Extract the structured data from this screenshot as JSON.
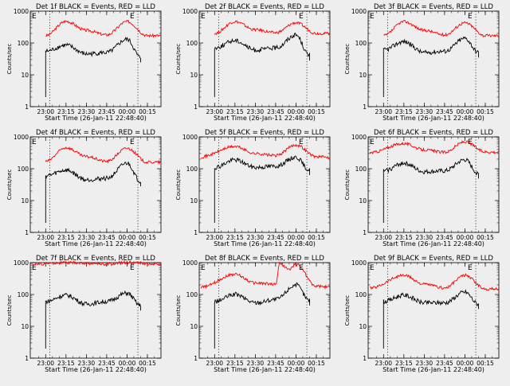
{
  "chart_data": [
    {
      "type": "line",
      "title": "Det 1f BLACK = Events, RED = LLD",
      "xlabel": "Start Time (26-Jan-11 22:48:40)",
      "ylabel": "Counts/sec",
      "yscale": "log",
      "ylim": [
        1,
        1000
      ],
      "xlim": [
        "22:48:40",
        "00:25:00"
      ],
      "x_ticks": [
        "23:00",
        "23:15",
        "23:30",
        "23:45",
        "00:00",
        "00:15"
      ],
      "y_ticks": [
        "1",
        "10",
        "100",
        "1000"
      ],
      "markers": [
        {
          "time": "23:03",
          "label": ""
        },
        {
          "time": "00:08",
          "label": "E"
        }
      ],
      "corner_label": "E",
      "grid": false,
      "series": [
        {
          "color": "#ff0000",
          "points": [
            [
              "23:00",
              170
            ],
            [
              "23:15",
              480
            ],
            [
              "23:30",
              250
            ],
            [
              "23:45",
              180
            ],
            [
              "00:00",
              470
            ],
            [
              "00:15",
              170
            ]
          ],
          "line_end": "00:25"
        },
        {
          "color": "#000000",
          "points": [
            [
              "23:00",
              55
            ],
            [
              "23:15",
              85
            ],
            [
              "23:30",
              45
            ],
            [
              "23:45",
              50
            ],
            [
              "00:00",
              130
            ],
            [
              "00:10",
              35
            ]
          ],
          "line_end": "00:10"
        }
      ]
    },
    {
      "type": "line",
      "title": "Det 2f BLACK = Events, RED = LLD",
      "xlabel": "Start Time (26-Jan-11 22:48:40)",
      "ylabel": "Counts/sec",
      "yscale": "log",
      "ylim": [
        1,
        1000
      ],
      "xlim": [
        "22:48:40",
        "00:25:00"
      ],
      "x_ticks": [
        "23:00",
        "23:15",
        "23:30",
        "23:45",
        "00:00",
        "00:15"
      ],
      "y_ticks": [
        "1",
        "10",
        "100",
        "1000"
      ],
      "markers": [
        {
          "time": "23:03",
          "label": ""
        },
        {
          "time": "00:08",
          "label": "E"
        }
      ],
      "corner_label": "E",
      "grid": false,
      "series": [
        {
          "color": "#ff0000",
          "points": [
            [
              "23:00",
              200
            ],
            [
              "23:15",
              470
            ],
            [
              "23:30",
              260
            ],
            [
              "23:45",
              210
            ],
            [
              "00:00",
              430
            ],
            [
              "00:15",
              200
            ]
          ],
          "line_end": "00:25"
        },
        {
          "color": "#000000",
          "points": [
            [
              "23:00",
              70
            ],
            [
              "23:15",
              120
            ],
            [
              "23:30",
              60
            ],
            [
              "23:45",
              70
            ],
            [
              "00:00",
              180
            ],
            [
              "00:10",
              40
            ]
          ],
          "line_end": "00:10"
        }
      ]
    },
    {
      "type": "line",
      "title": "Det 3f BLACK = Events, RED = LLD",
      "xlabel": "Start Time (26-Jan-11 22:48:40)",
      "ylabel": "Counts/sec",
      "yscale": "log",
      "ylim": [
        1,
        1000
      ],
      "xlim": [
        "22:48:40",
        "00:25:00"
      ],
      "x_ticks": [
        "23:00",
        "23:15",
        "23:30",
        "23:45",
        "00:00",
        "00:15"
      ],
      "y_ticks": [
        "1",
        "10",
        "100",
        "1000"
      ],
      "markers": [
        {
          "time": "23:03",
          "label": ""
        },
        {
          "time": "00:08",
          "label": "E"
        }
      ],
      "corner_label": "E",
      "grid": false,
      "series": [
        {
          "color": "#ff0000",
          "points": [
            [
              "23:00",
              170
            ],
            [
              "23:15",
              470
            ],
            [
              "23:30",
              250
            ],
            [
              "23:45",
              180
            ],
            [
              "00:00",
              430
            ],
            [
              "00:15",
              170
            ]
          ],
          "line_end": "00:25"
        },
        {
          "color": "#000000",
          "points": [
            [
              "23:00",
              60
            ],
            [
              "23:15",
              110
            ],
            [
              "23:30",
              50
            ],
            [
              "23:45",
              55
            ],
            [
              "00:00",
              140
            ],
            [
              "00:10",
              50
            ]
          ],
          "line_end": "00:10"
        }
      ]
    },
    {
      "type": "line",
      "title": "Det 4f BLACK = Events, RED = LLD",
      "xlabel": "Start Time (26-Jan-11 22:48:40)",
      "ylabel": "Counts/sec",
      "yscale": "log",
      "ylim": [
        1,
        1000
      ],
      "xlim": [
        "22:48:40",
        "00:25:00"
      ],
      "x_ticks": [
        "23:00",
        "23:15",
        "23:30",
        "23:45",
        "00:00",
        "00:15"
      ],
      "y_ticks": [
        "1",
        "10",
        "100",
        "1000"
      ],
      "markers": [
        {
          "time": "23:03",
          "label": ""
        },
        {
          "time": "00:08",
          "label": "E"
        }
      ],
      "corner_label": "E",
      "grid": false,
      "series": [
        {
          "color": "#ff0000",
          "points": [
            [
              "23:00",
              170
            ],
            [
              "23:15",
              460
            ],
            [
              "23:30",
              240
            ],
            [
              "23:45",
              170
            ],
            [
              "00:00",
              440
            ],
            [
              "00:15",
              160
            ]
          ],
          "line_end": "00:25"
        },
        {
          "color": "#000000",
          "points": [
            [
              "23:00",
              60
            ],
            [
              "23:15",
              90
            ],
            [
              "23:30",
              45
            ],
            [
              "23:45",
              50
            ],
            [
              "00:00",
              150
            ],
            [
              "00:10",
              40
            ]
          ],
          "line_end": "00:10"
        }
      ]
    },
    {
      "type": "line",
      "title": "Det 5f BLACK = Events, RED = LLD",
      "xlabel": "Start Time (26-Jan-11 22:48:40)",
      "ylabel": "Counts/sec",
      "yscale": "log",
      "ylim": [
        1,
        1000
      ],
      "xlim": [
        "22:48:40",
        "00:25:00"
      ],
      "x_ticks": [
        "23:00",
        "23:15",
        "23:30",
        "23:45",
        "00:00",
        "00:15"
      ],
      "y_ticks": [
        "1",
        "10",
        "100",
        "1000"
      ],
      "markers": [
        {
          "time": "23:03",
          "label": ""
        },
        {
          "time": "00:08",
          "label": "E"
        }
      ],
      "corner_label": "",
      "grid": false,
      "series": [
        {
          "color": "#ff0000",
          "points": [
            [
              "22:50",
              240
            ],
            [
              "23:15",
              500
            ],
            [
              "23:30",
              300
            ],
            [
              "23:45",
              260
            ],
            [
              "00:00",
              560
            ],
            [
              "00:15",
              240
            ],
            [
              "00:25",
              230
            ]
          ],
          "line_end": "00:25"
        },
        {
          "color": "#000000",
          "points": [
            [
              "23:00",
              110
            ],
            [
              "23:15",
              190
            ],
            [
              "23:30",
              110
            ],
            [
              "23:45",
              120
            ],
            [
              "00:00",
              230
            ],
            [
              "00:10",
              90
            ]
          ],
          "line_end": "00:10"
        }
      ]
    },
    {
      "type": "line",
      "title": "Det 6f BLACK = Events, RED = LLD",
      "xlabel": "Start Time (26-Jan-11 22:48:40)",
      "ylabel": "Counts/sec",
      "yscale": "log",
      "ylim": [
        1,
        1000
      ],
      "xlim": [
        "22:48:40",
        "00:25:00"
      ],
      "x_ticks": [
        "23:00",
        "23:15",
        "23:30",
        "23:45",
        "00:00",
        "00:15"
      ],
      "y_ticks": [
        "1",
        "10",
        "100",
        "1000"
      ],
      "markers": [
        {
          "time": "23:03",
          "label": ""
        },
        {
          "time": "00:08",
          "label": "E"
        }
      ],
      "corner_label": "E",
      "grid": false,
      "series": [
        {
          "color": "#ff0000",
          "points": [
            [
              "22:50",
              320
            ],
            [
              "23:15",
              620
            ],
            [
              "23:30",
              390
            ],
            [
              "23:45",
              330
            ],
            [
              "00:00",
              700
            ],
            [
              "00:15",
              340
            ],
            [
              "00:25",
              330
            ]
          ],
          "line_end": "00:25"
        },
        {
          "color": "#000000",
          "points": [
            [
              "23:00",
              85
            ],
            [
              "23:15",
              150
            ],
            [
              "23:30",
              80
            ],
            [
              "23:45",
              85
            ],
            [
              "00:00",
              190
            ],
            [
              "00:10",
              70
            ]
          ],
          "line_end": "00:10"
        }
      ]
    },
    {
      "type": "line",
      "title": "Det 7f BLACK = Events, RED = LLD",
      "xlabel": "Start Time (26-Jan-11 22:48:40)",
      "ylabel": "Counts/sec",
      "yscale": "log",
      "ylim": [
        1,
        1000
      ],
      "xlim": [
        "22:48:40",
        "00:25:00"
      ],
      "x_ticks": [
        "23:00",
        "23:15",
        "23:30",
        "23:45",
        "00:00",
        "00:15"
      ],
      "y_ticks": [
        "1",
        "10",
        "100",
        "1000"
      ],
      "markers": [
        {
          "time": "23:03",
          "label": ""
        },
        {
          "time": "00:08",
          "label": "E"
        }
      ],
      "corner_label": "E",
      "grid": false,
      "series": [
        {
          "color": "#ff0000",
          "points": [
            [
              "22:50",
              900
            ],
            [
              "23:15",
              1000
            ],
            [
              "23:30",
              950
            ],
            [
              "23:45",
              900
            ],
            [
              "00:00",
              1000
            ],
            [
              "00:25",
              900
            ]
          ],
          "line_end": "00:25"
        },
        {
          "color": "#000000",
          "points": [
            [
              "23:00",
              60
            ],
            [
              "23:15",
              95
            ],
            [
              "23:30",
              50
            ],
            [
              "23:45",
              60
            ],
            [
              "00:00",
              110
            ],
            [
              "00:10",
              45
            ]
          ],
          "line_end": "00:10"
        }
      ]
    },
    {
      "type": "line",
      "title": "Det 8f BLACK = Events, RED = LLD",
      "xlabel": "Start Time (26-Jan-11 22:48:40)",
      "ylabel": "Counts/sec",
      "yscale": "log",
      "ylim": [
        1,
        1000
      ],
      "xlim": [
        "22:48:40",
        "00:25:00"
      ],
      "x_ticks": [
        "23:00",
        "23:15",
        "23:30",
        "23:45",
        "00:00",
        "00:15"
      ],
      "y_ticks": [
        "1",
        "10",
        "100",
        "1000"
      ],
      "markers": [
        {
          "time": "23:03",
          "label": ""
        },
        {
          "time": "00:08",
          "label": "E"
        }
      ],
      "corner_label": "E",
      "grid": false,
      "series": [
        {
          "color": "#ff0000",
          "points": [
            [
              "22:50",
              170
            ],
            [
              "23:15",
              430
            ],
            [
              "23:30",
              230
            ],
            [
              "23:45",
              210
            ],
            [
              "23:48",
              950
            ],
            [
              "23:55",
              600
            ],
            [
              "00:00",
              900
            ],
            [
              "00:15",
              180
            ],
            [
              "00:25",
              170
            ]
          ],
          "line_end": "00:25"
        },
        {
          "color": "#000000",
          "points": [
            [
              "23:00",
              60
            ],
            [
              "23:15",
              100
            ],
            [
              "23:30",
              55
            ],
            [
              "23:45",
              70
            ],
            [
              "00:00",
              200
            ],
            [
              "00:10",
              65
            ]
          ],
          "line_end": "00:10"
        }
      ]
    },
    {
      "type": "line",
      "title": "Det 9f BLACK = Events, RED = LLD",
      "xlabel": "Start Time (26-Jan-11 22:48:40)",
      "ylabel": "Counts/sec",
      "yscale": "log",
      "ylim": [
        1,
        1000
      ],
      "xlim": [
        "22:48:40",
        "00:25:00"
      ],
      "x_ticks": [
        "23:00",
        "23:15",
        "23:30",
        "23:45",
        "00:00",
        "00:15"
      ],
      "y_ticks": [
        "1",
        "10",
        "100",
        "1000"
      ],
      "markers": [
        {
          "time": "23:03",
          "label": ""
        },
        {
          "time": "00:08",
          "label": "E"
        }
      ],
      "corner_label": "E",
      "grid": false,
      "series": [
        {
          "color": "#ff0000",
          "points": [
            [
              "22:50",
              160
            ],
            [
              "23:15",
              400
            ],
            [
              "23:30",
              210
            ],
            [
              "23:45",
              160
            ],
            [
              "00:00",
              400
            ],
            [
              "00:15",
              150
            ],
            [
              "00:25",
              150
            ]
          ],
          "line_end": "00:25"
        },
        {
          "color": "#000000",
          "points": [
            [
              "23:00",
              60
            ],
            [
              "23:15",
              95
            ],
            [
              "23:30",
              55
            ],
            [
              "23:45",
              55
            ],
            [
              "00:00",
              120
            ],
            [
              "00:10",
              50
            ]
          ],
          "line_end": "00:10"
        }
      ]
    }
  ]
}
